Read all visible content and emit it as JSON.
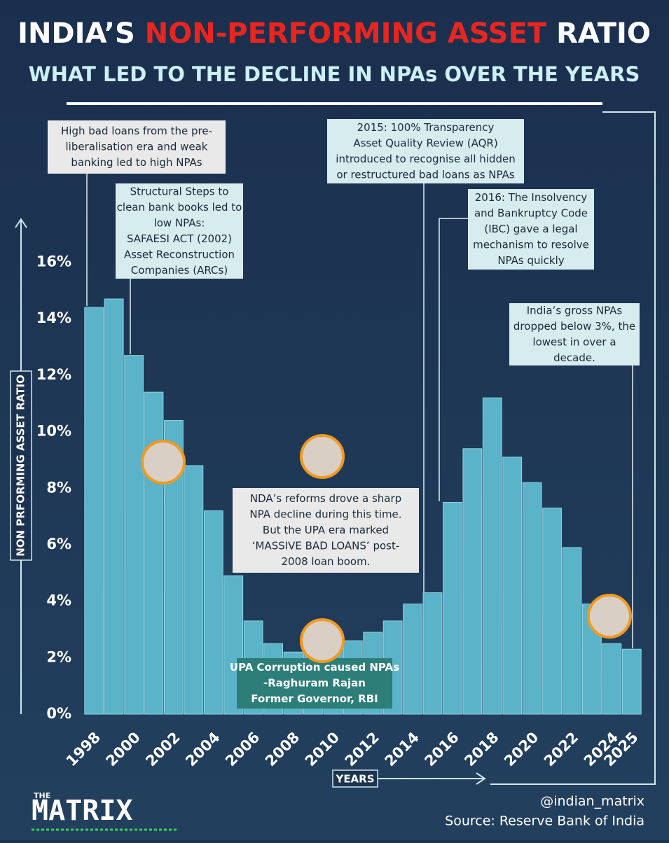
{
  "chart_data": {
    "type": "bar",
    "title": [
      "INDIA’S",
      "NON-PERFORMING ASSET",
      "RATIO"
    ],
    "subtitle": "WHAT LED TO THE DECLINE IN NPAs OVER THE YEARS",
    "x_label": "YEARS",
    "y_label": "NON PRFORMING ASSET RATIO",
    "categories": [
      "1998",
      null,
      "2000",
      null,
      "2002",
      null,
      "2004",
      null,
      "2006",
      null,
      "2008",
      null,
      "2010",
      null,
      "2012",
      null,
      "2014",
      null,
      "2016",
      null,
      "2018",
      null,
      "2020",
      null,
      "2022",
      null,
      "2024",
      "2025"
    ],
    "values": [
      14.4,
      14.7,
      12.7,
      11.4,
      10.4,
      8.8,
      7.2,
      4.9,
      3.3,
      2.5,
      2.2,
      2.3,
      2.4,
      2.6,
      2.9,
      3.3,
      3.9,
      4.3,
      7.5,
      9.4,
      11.2,
      9.1,
      8.2,
      7.3,
      5.9,
      3.9,
      2.5,
      2.3
    ],
    "color": "#5ab3c8",
    "ylim": [
      0,
      17.6
    ],
    "yticks": [
      {
        "value": 0,
        "label": "0%"
      },
      {
        "value": 2,
        "label": "2%"
      },
      {
        "value": 4,
        "label": "4%"
      },
      {
        "value": 6,
        "label": "6%"
      },
      {
        "value": 8,
        "label": "8%"
      },
      {
        "value": 10,
        "label": "10%"
      },
      {
        "value": 12,
        "label": "12%"
      },
      {
        "value": 14,
        "label": "14%"
      },
      {
        "value": 16,
        "label": "16%"
      }
    ],
    "annotations": [
      {
        "lines": [
          "High bad loans from the pre-",
          "liberalisation era and weak",
          "banking led to high NPAs"
        ]
      },
      {
        "lines": [
          "Structural Steps to",
          "clean bank books led to",
          "low NPAs:",
          "SAFAESI ACT (2002)",
          "Asset Reconstruction",
          "Companies (ARCs)"
        ]
      },
      {
        "lines": [
          "2015: 100% Transparency",
          "Asset Quality Review (AQR)",
          "introduced to recognise all hidden",
          "or restructured bad loans as NPAs"
        ]
      },
      {
        "lines": [
          "2016: The Insolvency",
          "and Bankruptcy Code",
          "(IBC) gave a legal",
          "mechanism to resolve",
          "NPAs quickly"
        ]
      },
      {
        "lines": [
          "India’s gross NPAs",
          "dropped below 3%, the",
          "lowest in over a",
          "decade."
        ]
      },
      {
        "lines": [
          "NDA’s reforms drove a sharp",
          "NPA decline during this time.",
          "But the UPA era marked",
          "‘MASSIVE BAD LOANS’ post-",
          "2008 loan boom."
        ]
      },
      {
        "lines": [
          "UPA Corruption caused NPAs",
          "-Raghuram Rajan",
          "Former Governor, RBI"
        ]
      }
    ],
    "logo": [
      "THE",
      "MATRIX"
    ],
    "handle": "@indian_matrix",
    "source": "Source: Reserve Bank of India"
  }
}
